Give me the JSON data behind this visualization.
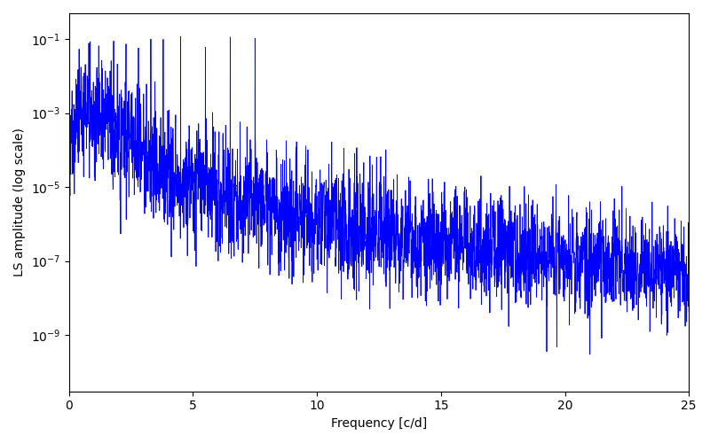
{
  "xlabel": "Frequency [c/d]",
  "ylabel": "LS amplitude (log scale)",
  "line_color": "#0000FF",
  "xlim": [
    0,
    25
  ],
  "ylim": [
    3e-11,
    0.5
  ],
  "background_color": "#ffffff",
  "linewidth": 0.6,
  "n_points": 3000,
  "freq_max": 25.0,
  "seed": 7,
  "yticks": [
    1e-09,
    1e-07,
    1e-05,
    0.001,
    0.1
  ],
  "figsize": [
    8.0,
    5.0
  ],
  "dpi": 100
}
